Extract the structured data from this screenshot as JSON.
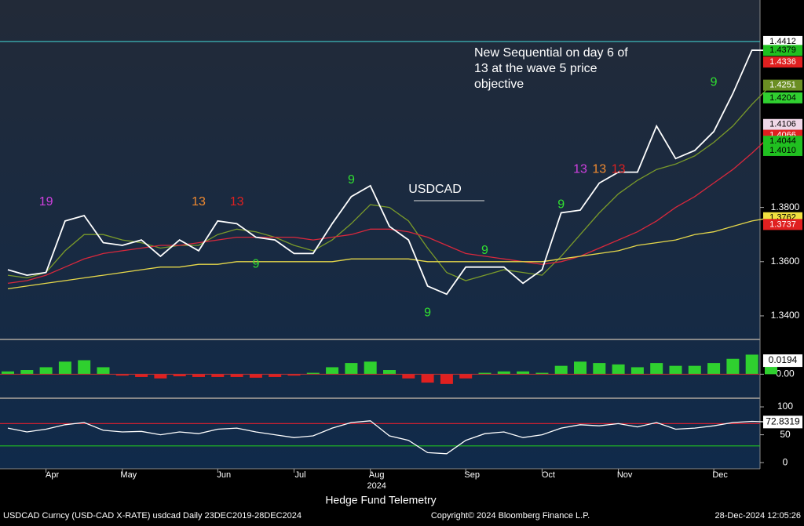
{
  "chart_data": [
    {
      "type": "line",
      "title": "USDCAD",
      "annotation": "New Sequential on day 6 of 13 at the wave 5 price objective",
      "year_label": "2024",
      "categories": [
        null,
        null,
        "Apr",
        null,
        null,
        null,
        "May",
        null,
        null,
        null,
        null,
        "Jun",
        null,
        null,
        null,
        "Jul",
        null,
        null,
        null,
        "Aug",
        null,
        null,
        null,
        null,
        "Sep",
        null,
        null,
        null,
        "Oct",
        null,
        null,
        null,
        "Nov",
        null,
        null,
        null,
        null,
        "Dec",
        null,
        null,
        null
      ],
      "series": [
        {
          "color": "#ffffff",
          "values": [
            1.357,
            1.355,
            1.356,
            1.375,
            1.377,
            1.367,
            1.366,
            1.368,
            1.362,
            1.368,
            1.364,
            1.375,
            1.374,
            1.369,
            1.368,
            1.363,
            1.363,
            1.374,
            1.384,
            1.388,
            1.373,
            1.368,
            1.351,
            1.348,
            1.358,
            1.358,
            1.358,
            1.352,
            1.357,
            1.378,
            1.379,
            1.389,
            1.393,
            1.393,
            1.41,
            1.398,
            1.401,
            1.408,
            1.422,
            1.438,
            1.4379
          ]
        },
        {
          "color": "#e6d84a",
          "values": [
            1.35,
            1.351,
            1.352,
            1.353,
            1.354,
            1.355,
            1.356,
            1.357,
            1.358,
            1.358,
            1.359,
            1.359,
            1.36,
            1.36,
            1.36,
            1.36,
            1.36,
            1.36,
            1.361,
            1.361,
            1.361,
            1.361,
            1.36,
            1.36,
            1.36,
            1.36,
            1.36,
            1.36,
            1.36,
            1.361,
            1.362,
            1.363,
            1.364,
            1.366,
            1.367,
            1.368,
            1.37,
            1.371,
            1.373,
            1.375,
            1.3762
          ]
        },
        {
          "color": "#d8283c",
          "values": [
            1.352,
            1.353,
            1.355,
            1.358,
            1.361,
            1.363,
            1.364,
            1.365,
            1.366,
            1.366,
            1.367,
            1.368,
            1.369,
            1.369,
            1.369,
            1.369,
            1.368,
            1.369,
            1.37,
            1.372,
            1.372,
            1.371,
            1.369,
            1.366,
            1.363,
            1.362,
            1.361,
            1.36,
            1.359,
            1.36,
            1.362,
            1.365,
            1.368,
            1.371,
            1.375,
            1.38,
            1.384,
            1.389,
            1.394,
            1.4,
            1.4066
          ]
        },
        {
          "color": "#7a9a2a",
          "values": [
            1.355,
            1.354,
            1.356,
            1.364,
            1.37,
            1.37,
            1.368,
            1.367,
            1.365,
            1.366,
            1.366,
            1.37,
            1.372,
            1.371,
            1.369,
            1.366,
            1.364,
            1.368,
            1.374,
            1.381,
            1.38,
            1.375,
            1.365,
            1.356,
            1.353,
            1.355,
            1.357,
            1.356,
            1.355,
            1.362,
            1.37,
            1.378,
            1.385,
            1.39,
            1.394,
            1.396,
            1.399,
            1.404,
            1.41,
            1.418,
            1.4251
          ]
        }
      ],
      "sequential_labels": [
        {
          "label": "19",
          "at": 2,
          "y": 1.382,
          "color": "#d040e0"
        },
        {
          "label": "13",
          "at": 10,
          "y": 1.382,
          "color": "#f08a30"
        },
        {
          "label": "13",
          "at": 12,
          "y": 1.382,
          "color": "#e02020"
        },
        {
          "label": "9",
          "at": 13,
          "y": 1.359,
          "color": "#30e030"
        },
        {
          "label": "9",
          "at": 18,
          "y": 1.39,
          "color": "#30e030"
        },
        {
          "label": "9",
          "at": 22,
          "y": 1.341,
          "color": "#30e030"
        },
        {
          "label": "9",
          "at": 25,
          "y": 1.364,
          "color": "#30e030"
        },
        {
          "label": "9",
          "at": 29,
          "y": 1.381,
          "color": "#30e030"
        },
        {
          "label": "13",
          "at": 30,
          "y": 1.394,
          "color": "#d040e0"
        },
        {
          "label": "13",
          "at": 31,
          "y": 1.394,
          "color": "#f08a30"
        },
        {
          "label": "13",
          "at": 32,
          "y": 1.394,
          "color": "#e02020"
        },
        {
          "label": "9",
          "at": 37,
          "y": 1.426,
          "color": "#30e030"
        }
      ],
      "price_tags": [
        {
          "value": 1.4412,
          "color": "#ffffff",
          "text_color": "#000000",
          "line": true
        },
        {
          "value": 1.4379,
          "color": "#20c020",
          "text_color": "#000000"
        },
        {
          "value": 1.4336,
          "color": "#e02020",
          "text_color": "#ffffff"
        },
        {
          "value": 1.4251,
          "color": "#6b8e23",
          "text_color": "#ffffff"
        },
        {
          "value": 1.4204,
          "color": "#30d030",
          "text_color": "#000000"
        },
        {
          "value": 1.4106,
          "color": "#f0d8e8",
          "text_color": "#000000"
        },
        {
          "value": 1.4066,
          "color": "#e02020",
          "text_color": "#ffffff"
        },
        {
          "value": 1.4044,
          "color": "#20c020",
          "text_color": "#000000"
        },
        {
          "value": {
            "value": 1.401,
            "label": "1.4010"
          },
          "color": "#20c020",
          "text_color": "#000000"
        },
        {
          "value": 1.3762,
          "color": "#f0e040",
          "text_color": "#000000"
        },
        {
          "value": 1.3737,
          "color": "#e02020",
          "text_color": "#ffffff"
        }
      ],
      "ylim": [
        1.3316,
        1.4565
      ],
      "yticks": [
        {
          "value": 1.34,
          "label": "1.3400"
        },
        {
          "value": 1.36,
          "label": "1.3600"
        },
        {
          "value": 1.38,
          "label": "1.3800"
        }
      ]
    },
    {
      "type": "bar",
      "values": [
        0.004,
        0.006,
        0.01,
        0.018,
        0.02,
        0.01,
        -0.002,
        -0.004,
        -0.006,
        -0.003,
        -0.004,
        -0.004,
        -0.004,
        -0.005,
        -0.004,
        -0.002,
        0.002,
        0.01,
        0.016,
        0.018,
        0.006,
        -0.006,
        -0.012,
        -0.014,
        -0.006,
        0.002,
        0.004,
        0.004,
        0.002,
        0.012,
        0.018,
        0.016,
        0.014,
        0.01,
        0.016,
        0.012,
        0.012,
        0.016,
        0.022,
        0.028,
        0.0194
      ],
      "colors": {
        "positive": "#2fd02f",
        "negative": "#e02020"
      },
      "last_tag": 0.0194,
      "ylim": [
        -0.031,
        0.0464
      ],
      "yticks": [
        {
          "value": 0,
          "label": "0.00"
        }
      ]
    },
    {
      "type": "line",
      "series": [
        {
          "color": "#ffffff",
          "values": [
            62,
            55,
            60,
            68,
            72,
            58,
            55,
            56,
            50,
            55,
            52,
            60,
            62,
            55,
            50,
            45,
            48,
            62,
            72,
            75,
            48,
            40,
            18,
            16,
            40,
            52,
            55,
            45,
            50,
            62,
            68,
            66,
            70,
            64,
            72,
            60,
            62,
            66,
            72,
            74,
            72.8319
          ]
        }
      ],
      "levels": [
        {
          "value": 70,
          "color": "#d02030"
        },
        {
          "value": 30,
          "color": "#20c020"
        }
      ],
      "last_tag": 72.8319,
      "ylim": [
        -11,
        112.7
      ],
      "yticks": [
        0,
        50,
        100
      ]
    }
  ],
  "footer": {
    "brand": "Hedge Fund Telemetry",
    "security": "USDCAD Curncy (USD-CAD X-RATE) usdcad  Daily 23DEC2019-28DEC2024",
    "copyright": "Copyright© 2024 Bloomberg Finance L.P.",
    "timestamp": "28-Dec-2024 12:05:26"
  }
}
